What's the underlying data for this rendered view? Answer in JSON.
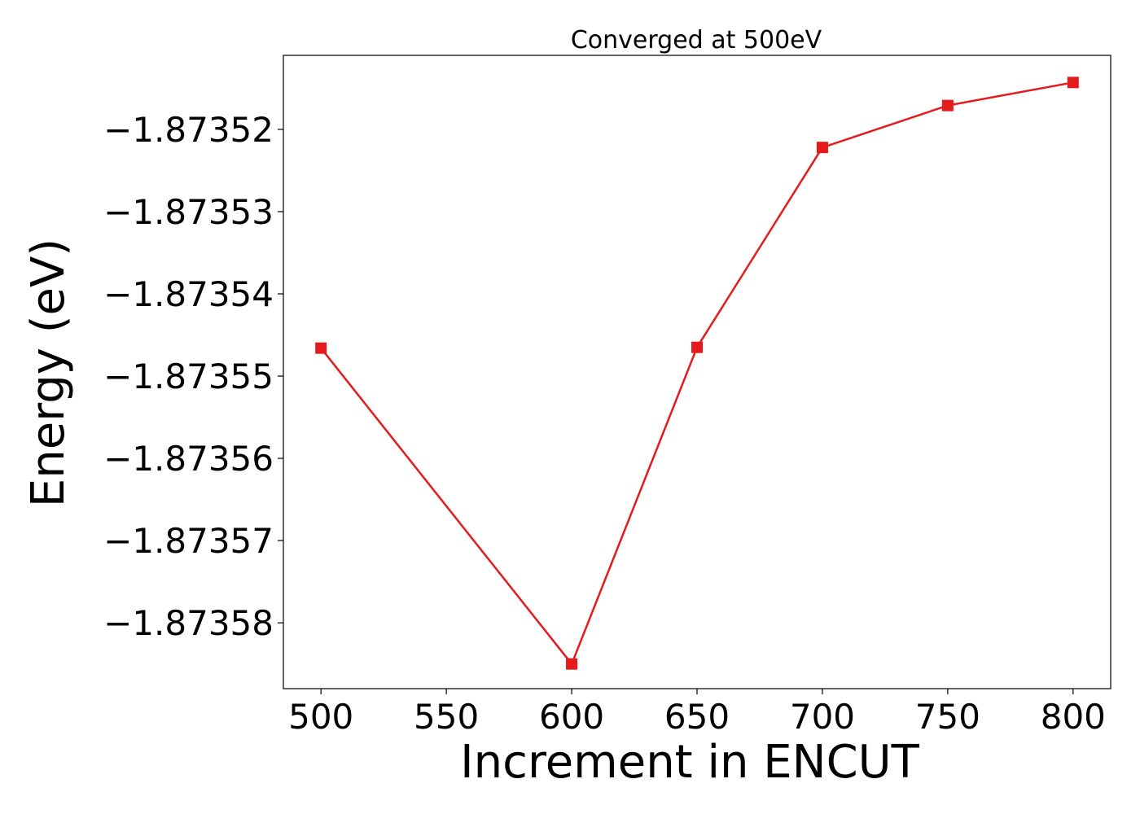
{
  "chart_data": {
    "type": "line",
    "title": "Converged at 500eV",
    "xlabel": "Increment in ENCUT",
    "ylabel": "Energy (eV)",
    "xlim": [
      485,
      815
    ],
    "ylim": [
      -1.873588,
      -1.873511
    ],
    "x_ticks": [
      500,
      550,
      600,
      650,
      700,
      750,
      800
    ],
    "x_tick_labels": [
      "500",
      "550",
      "600",
      "650",
      "700",
      "750",
      "800"
    ],
    "y_ticks": [
      -1.87352,
      -1.87353,
      -1.87354,
      -1.87355,
      -1.87356,
      -1.87357,
      -1.87358
    ],
    "y_tick_labels": [
      "−1.87352",
      "−1.87353",
      "−1.87354",
      "−1.87355",
      "−1.87356",
      "−1.87357",
      "−1.87358"
    ],
    "grid": false,
    "series": [
      {
        "color": "#e41a1c",
        "marker": "square",
        "x": [
          500,
          600,
          650,
          700,
          750,
          800
        ],
        "y": [
          -1.8735466,
          -1.873585,
          -1.8735465,
          -1.8735222,
          -1.8735171,
          -1.8735143
        ]
      }
    ]
  }
}
